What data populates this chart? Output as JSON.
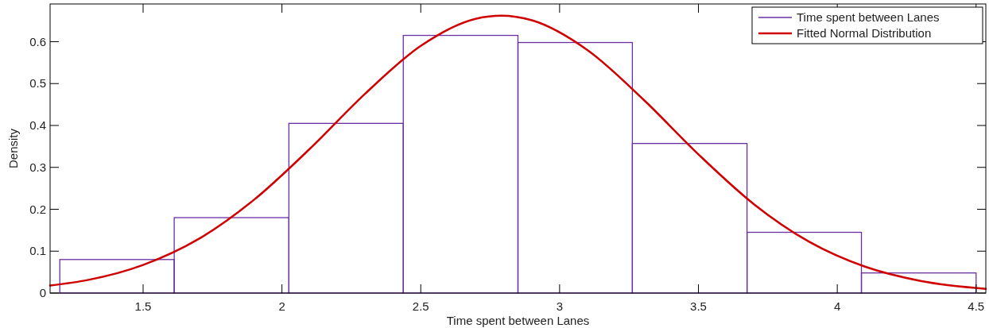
{
  "chart_data": {
    "type": "histogram",
    "xlabel": "Time spent between Lanes",
    "ylabel": "Density",
    "xlim": [
      1.165,
      4.535
    ],
    "ylim": [
      0,
      0.69
    ],
    "xticks": [
      1.5,
      2,
      2.5,
      3,
      3.5,
      4,
      4.5
    ],
    "yticks": [
      0,
      0.1,
      0.2,
      0.3,
      0.4,
      0.5,
      0.6
    ],
    "grid": false,
    "legend": "top right",
    "line_style": "solid",
    "marker": "none",
    "series": [
      {
        "name": "Time spent between Lanes",
        "color": "#6a2fa0",
        "bins": [
          1.2,
          1.612,
          2.025,
          2.437,
          2.85,
          3.262,
          3.675,
          4.087,
          4.5
        ],
        "values": [
          0.08,
          0.18,
          0.405,
          0.615,
          0.598,
          0.357,
          0.145,
          0.048
        ]
      },
      {
        "name": "Fitted Normal Distribution",
        "type": "line",
        "color": "#d00000",
        "x": [
          1.165,
          1.3,
          1.5,
          1.7,
          1.9,
          2.1,
          2.3,
          2.5,
          2.7,
          2.79,
          2.9,
          3.1,
          3.3,
          3.5,
          3.7,
          3.9,
          4.1,
          4.3,
          4.535
        ],
        "values": [
          0.018,
          0.031,
          0.067,
          0.129,
          0.223,
          0.344,
          0.476,
          0.59,
          0.655,
          0.662,
          0.651,
          0.58,
          0.463,
          0.331,
          0.212,
          0.122,
          0.063,
          0.029,
          0.01
        ]
      }
    ]
  }
}
